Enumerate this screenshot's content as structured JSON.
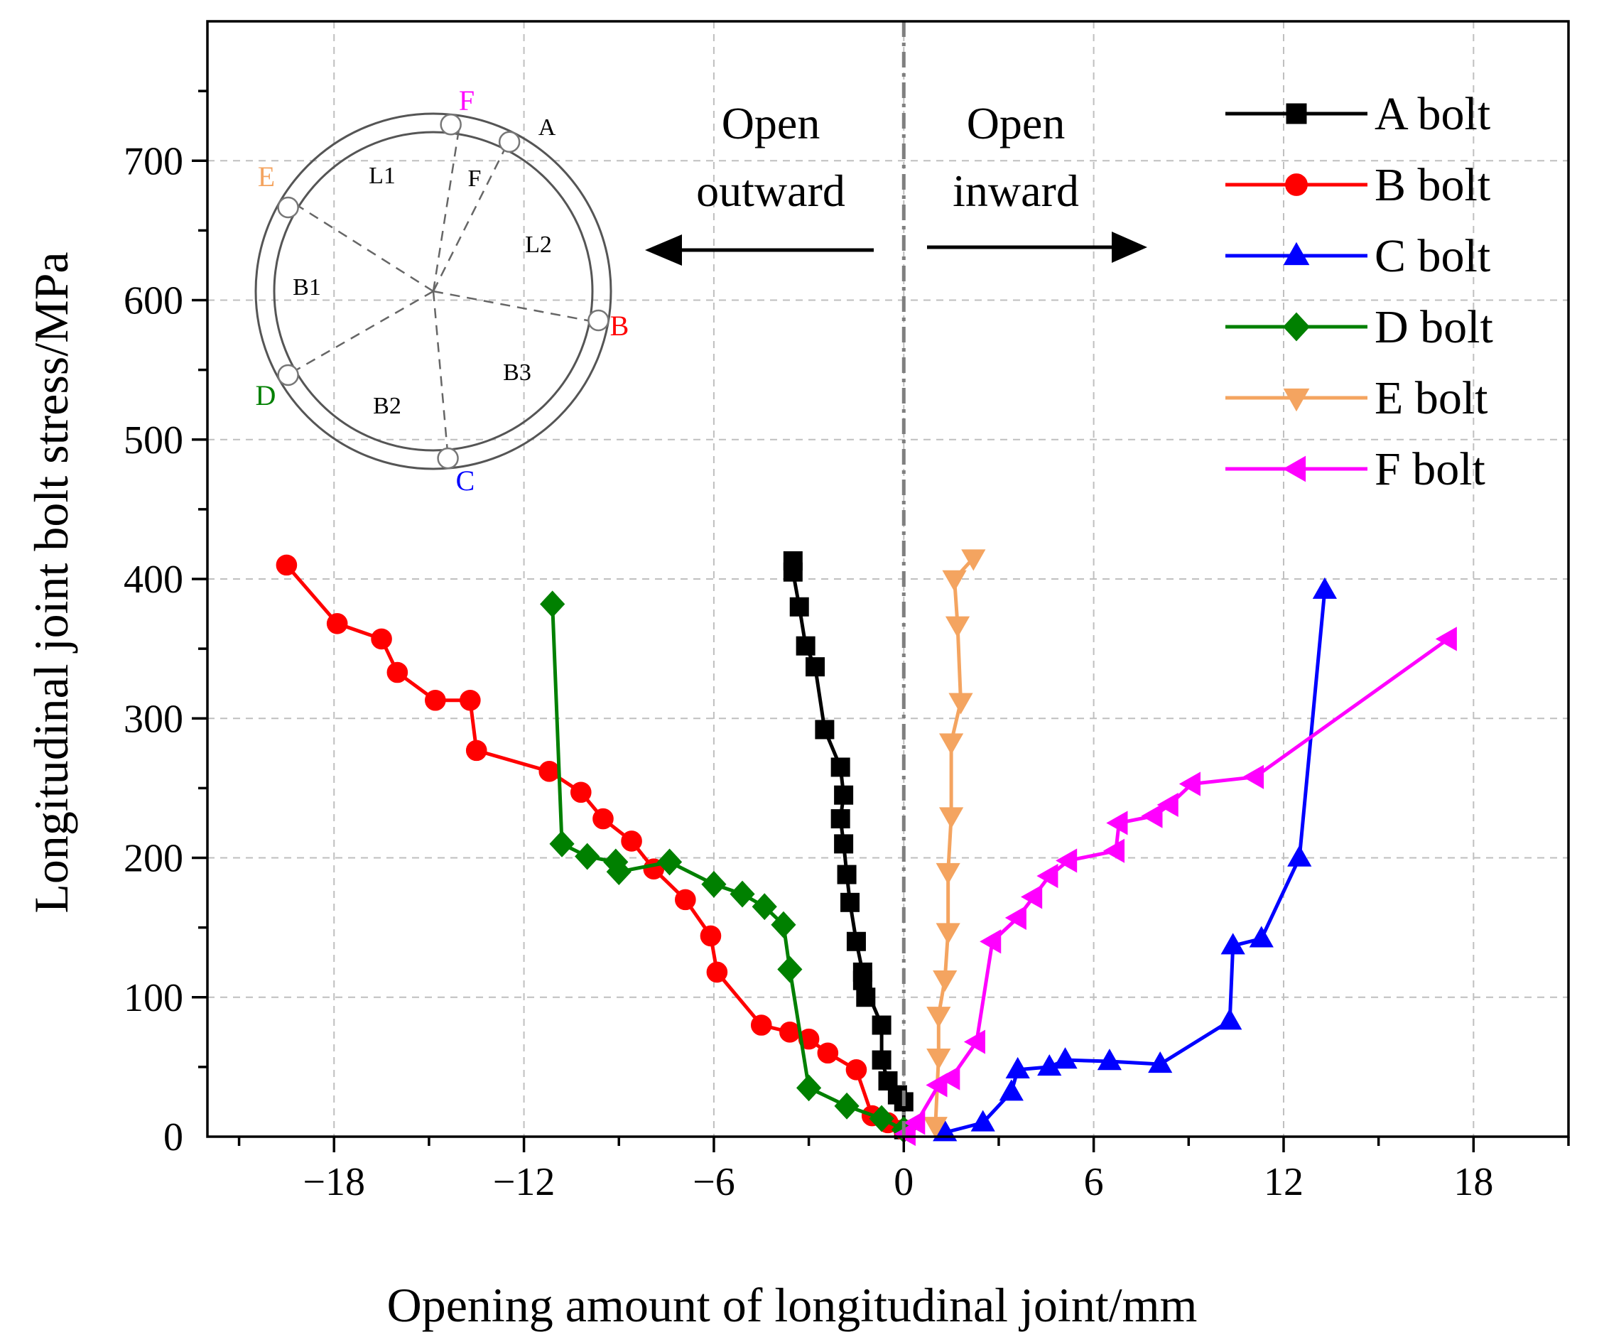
{
  "chart_data": {
    "type": "line",
    "title": "",
    "xlabel": "Opening amount of longitudinal joint/mm",
    "ylabel": "Longitudinal joint bolt stress/MPa",
    "xlim": [
      -22,
      21
    ],
    "ylim": [
      0,
      800
    ],
    "xticks": [
      -18,
      -12,
      -6,
      0,
      6,
      12,
      18
    ],
    "yticks": [
      0,
      100,
      200,
      300,
      400,
      500,
      600,
      700
    ],
    "xtick_labels": [
      "−18",
      "−12",
      "−6",
      "0",
      "6",
      "12",
      "18"
    ],
    "ytick_labels": [
      "0",
      "100",
      "200",
      "300",
      "400",
      "500",
      "600",
      "700"
    ],
    "grid": true,
    "legend_position": "top-right",
    "annotations": {
      "left_line1": "Open",
      "left_line2": "outward",
      "right_line1": "Open",
      "right_line2": "inward"
    },
    "inset": {
      "labels": {
        "A": "A",
        "B": "B",
        "C": "C",
        "D": "D",
        "E": "E",
        "F": "F",
        "L1": "L1",
        "L2": "L2",
        "Fseg": "F",
        "B1": "B1",
        "B2": "B2",
        "B3": "B3"
      }
    },
    "series": [
      {
        "name": "A bolt",
        "color": "#000000",
        "marker": "square",
        "points": [
          [
            -3.5,
            413
          ],
          [
            -3.5,
            405
          ],
          [
            -3.3,
            380
          ],
          [
            -3.1,
            352
          ],
          [
            -2.8,
            337
          ],
          [
            -2.5,
            292
          ],
          [
            -2.0,
            265
          ],
          [
            -1.9,
            245
          ],
          [
            -2.0,
            228
          ],
          [
            -1.9,
            210
          ],
          [
            -1.8,
            188
          ],
          [
            -1.7,
            168
          ],
          [
            -1.5,
            140
          ],
          [
            -1.3,
            118
          ],
          [
            -1.2,
            100
          ],
          [
            -1.3,
            112
          ],
          [
            -0.7,
            80
          ],
          [
            -0.7,
            55
          ],
          [
            -0.5,
            40
          ],
          [
            -0.2,
            30
          ],
          [
            0,
            25
          ],
          [
            0,
            5
          ]
        ]
      },
      {
        "name": "B bolt",
        "color": "#ff0000",
        "marker": "circle",
        "points": [
          [
            -19.5,
            410
          ],
          [
            -17.9,
            368
          ],
          [
            -16.5,
            357
          ],
          [
            -16.0,
            333
          ],
          [
            -14.8,
            313
          ],
          [
            -13.7,
            313
          ],
          [
            -13.5,
            277
          ],
          [
            -11.2,
            262
          ],
          [
            -10.2,
            247
          ],
          [
            -9.5,
            228
          ],
          [
            -8.6,
            212
          ],
          [
            -7.9,
            192
          ],
          [
            -6.9,
            170
          ],
          [
            -6.1,
            144
          ],
          [
            -5.9,
            118
          ],
          [
            -4.5,
            80
          ],
          [
            -3.6,
            75
          ],
          [
            -3.0,
            70
          ],
          [
            -2.4,
            60
          ],
          [
            -1.5,
            48
          ],
          [
            -1.0,
            15
          ],
          [
            -0.5,
            10
          ],
          [
            0,
            5
          ]
        ]
      },
      {
        "name": "C bolt",
        "color": "#0000ff",
        "marker": "triangle-up",
        "points": [
          [
            1.3,
            3
          ],
          [
            2.5,
            10
          ],
          [
            3.4,
            32
          ],
          [
            3.6,
            48
          ],
          [
            4.6,
            50
          ],
          [
            5.1,
            55
          ],
          [
            6.5,
            54
          ],
          [
            8.1,
            52
          ],
          [
            10.3,
            83
          ],
          [
            10.4,
            137
          ],
          [
            11.3,
            142
          ],
          [
            12.5,
            200
          ],
          [
            13.3,
            392
          ]
        ]
      },
      {
        "name": "D bolt",
        "color": "#008000",
        "marker": "diamond",
        "points": [
          [
            -11.1,
            382
          ],
          [
            -10.8,
            210
          ],
          [
            -10.0,
            201
          ],
          [
            -9.1,
            197
          ],
          [
            -9.0,
            190
          ],
          [
            -7.4,
            197
          ],
          [
            -6.0,
            181
          ],
          [
            -5.1,
            174
          ],
          [
            -4.4,
            165
          ],
          [
            -3.8,
            152
          ],
          [
            -3.6,
            120
          ],
          [
            -3.0,
            35
          ],
          [
            -1.8,
            22
          ],
          [
            -0.7,
            13
          ],
          [
            0,
            5
          ]
        ]
      },
      {
        "name": "E bolt",
        "color": "#f4a460",
        "marker": "triangle-down",
        "points": [
          [
            2.2,
            415
          ],
          [
            1.6,
            400
          ],
          [
            1.7,
            367
          ],
          [
            1.8,
            312
          ],
          [
            1.5,
            283
          ],
          [
            1.5,
            230
          ],
          [
            1.4,
            190
          ],
          [
            1.4,
            147
          ],
          [
            1.3,
            113
          ],
          [
            1.1,
            87
          ],
          [
            1.1,
            57
          ],
          [
            1.0,
            8
          ]
        ]
      },
      {
        "name": "F bolt",
        "color": "#ff00ff",
        "marker": "triangle-left",
        "points": [
          [
            0.1,
            2
          ],
          [
            0.4,
            10
          ],
          [
            1.1,
            37
          ],
          [
            1.5,
            42
          ],
          [
            2.3,
            68
          ],
          [
            2.8,
            140
          ],
          [
            3.6,
            157
          ],
          [
            4.1,
            172
          ],
          [
            4.6,
            187
          ],
          [
            5.2,
            198
          ],
          [
            6.7,
            205
          ],
          [
            6.8,
            225
          ],
          [
            7.9,
            230
          ],
          [
            8.4,
            238
          ],
          [
            9.1,
            253
          ],
          [
            11.1,
            258
          ],
          [
            17.2,
            357
          ]
        ]
      }
    ]
  }
}
